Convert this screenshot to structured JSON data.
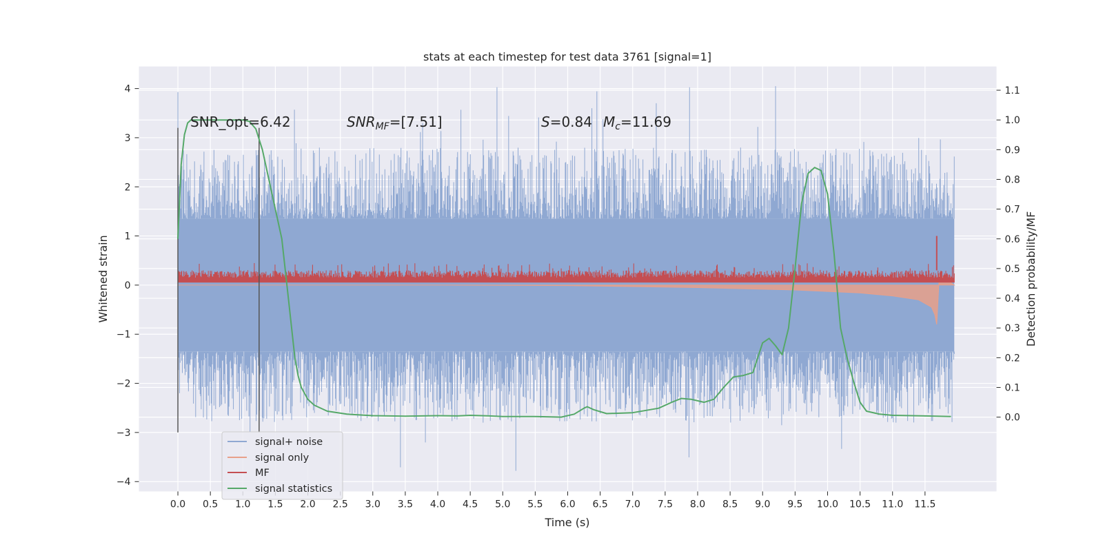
{
  "chart_data": {
    "type": "line",
    "title": "stats at each timestep for test data 3761 [signal=1]",
    "xlabel": "Time (s)",
    "ylabel": "Whitened strain",
    "ylabel_right": "Detection probability/MF",
    "xlim": [
      -0.6,
      12.6
    ],
    "ylim": [
      -4.2,
      4.45
    ],
    "ylim_right": [
      -0.25,
      1.18
    ],
    "x_ticks": [
      "0.0",
      "0.5",
      "1.0",
      "1.5",
      "2.0",
      "2.5",
      "3.0",
      "3.5",
      "4.0",
      "4.5",
      "5.0",
      "5.5",
      "6.0",
      "6.5",
      "7.0",
      "7.5",
      "8.0",
      "8.5",
      "9.0",
      "9.5",
      "10.0",
      "10.5",
      "11.0",
      "11.5"
    ],
    "y_ticks": [
      "4",
      "3",
      "2",
      "1",
      "0",
      "−1",
      "−2",
      "−3",
      "−4"
    ],
    "y_ticks_right": [
      "1.1",
      "1.0",
      "0.9",
      "0.8",
      "0.7",
      "0.6",
      "0.5",
      "0.4",
      "0.3",
      "0.2",
      "0.1",
      "0.0"
    ],
    "grid": true,
    "legend_position": "lower-left",
    "annotations": {
      "snr_opt": "SNR_opt=6.42",
      "snr_mf_label": "SNR",
      "snr_mf_sub": "MF",
      "snr_mf_value": "=[7.51]",
      "s_label": "S",
      "s_value": "=0.84",
      "mc_label": "M",
      "mc_sub": "c",
      "mc_value": "=11.69"
    },
    "vertical_markers": [
      0.0,
      1.25
    ],
    "series": [
      {
        "name": "signal+ noise",
        "color": "#8fa8d2",
        "envelope": {
          "x_range": [
            0.0,
            11.95
          ],
          "core": 1.35,
          "typical_peak": 2.6,
          "max": 4.1,
          "min": -3.85
        }
      },
      {
        "name": "signal only",
        "color": "#e8a08a",
        "x": [
          0.0,
          4.0,
          6.0,
          8.0,
          9.5,
          10.5,
          11.0,
          11.4,
          11.6,
          11.65,
          11.68,
          11.72,
          11.95
        ],
        "y": [
          0.0,
          0.0,
          -0.01,
          -0.05,
          -0.1,
          -0.16,
          -0.22,
          -0.3,
          -0.45,
          -0.6,
          -0.8,
          0.2,
          0.0
        ]
      },
      {
        "name": "MF",
        "color": "#c44e52",
        "baseline": [
          0.05,
          0.3
        ],
        "peak": {
          "x": 11.68,
          "y": 1.0
        }
      },
      {
        "name": "signal statistics",
        "color": "#55a868",
        "x": [
          0.0,
          0.05,
          0.1,
          0.15,
          0.2,
          0.3,
          0.5,
          0.8,
          1.0,
          1.1,
          1.2,
          1.3,
          1.4,
          1.5,
          1.6,
          1.7,
          1.8,
          1.85,
          1.9,
          2.0,
          2.1,
          2.3,
          2.6,
          3.0,
          3.5,
          4.0,
          4.3,
          4.5,
          4.8,
          5.0,
          5.5,
          5.9,
          6.1,
          6.25,
          6.3,
          6.4,
          6.6,
          7.0,
          7.4,
          7.6,
          7.75,
          7.9,
          8.1,
          8.25,
          8.4,
          8.55,
          8.7,
          8.85,
          9.0,
          9.1,
          9.2,
          9.3,
          9.4,
          9.5,
          9.6,
          9.7,
          9.8,
          9.9,
          10.0,
          10.1,
          10.2,
          10.3,
          10.4,
          10.5,
          10.6,
          10.8,
          11.0,
          11.5,
          11.9
        ],
        "y": [
          0.6,
          0.85,
          0.95,
          0.99,
          1.0,
          1.0,
          1.0,
          1.0,
          1.0,
          0.995,
          0.97,
          0.9,
          0.8,
          0.7,
          0.6,
          0.4,
          0.2,
          0.14,
          0.1,
          0.06,
          0.04,
          0.02,
          0.01,
          0.005,
          0.003,
          0.005,
          0.004,
          0.006,
          0.004,
          0.002,
          0.002,
          0.0,
          0.01,
          0.03,
          0.035,
          0.025,
          0.012,
          0.015,
          0.03,
          0.05,
          0.063,
          0.06,
          0.05,
          0.06,
          0.1,
          0.135,
          0.14,
          0.15,
          0.25,
          0.265,
          0.24,
          0.21,
          0.3,
          0.5,
          0.72,
          0.82,
          0.84,
          0.83,
          0.75,
          0.55,
          0.3,
          0.2,
          0.12,
          0.05,
          0.02,
          0.01,
          0.006,
          0.004,
          0.002
        ]
      }
    ]
  }
}
